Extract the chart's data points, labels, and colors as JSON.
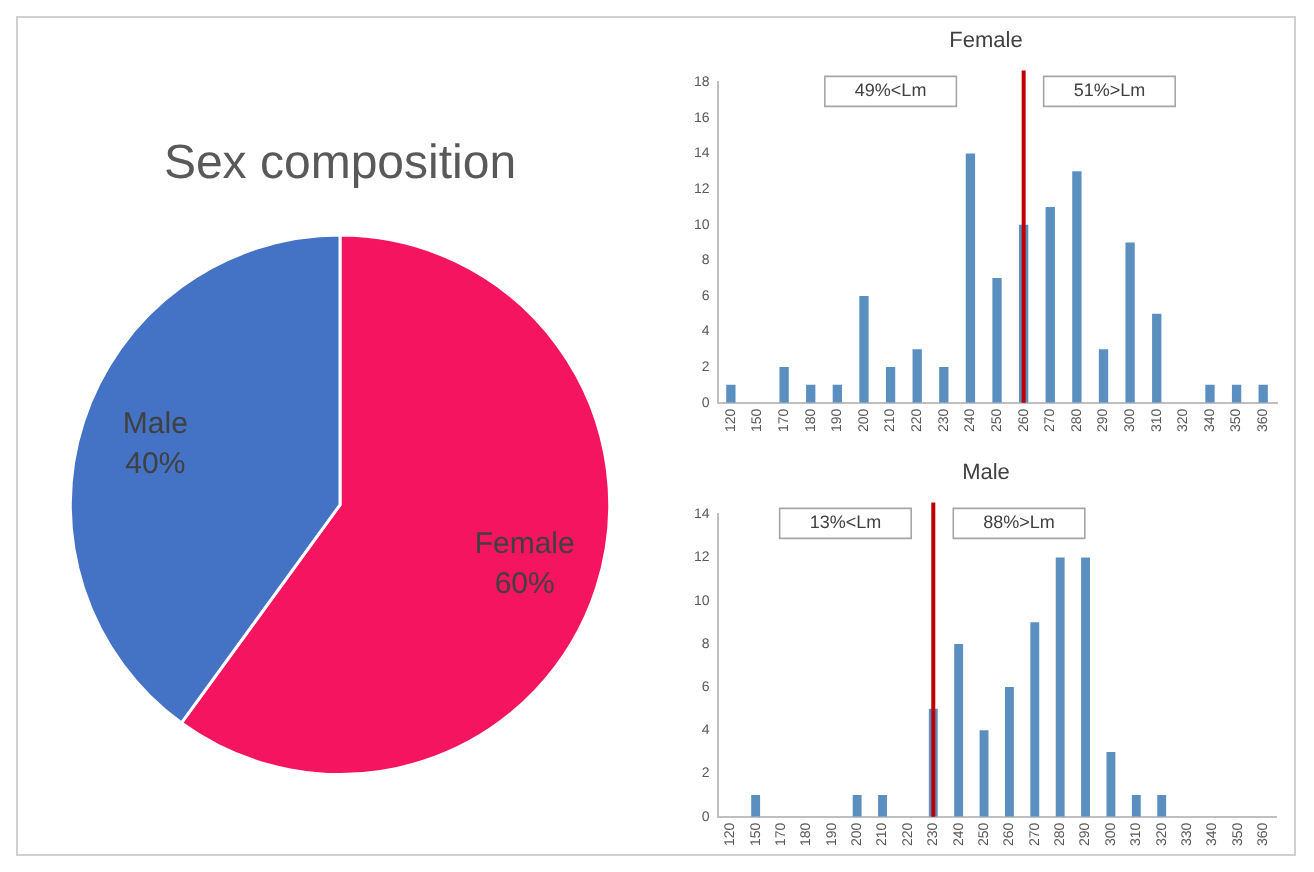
{
  "chart_data": [
    {
      "type": "pie",
      "title": "Sex composition",
      "categories": [
        "Female",
        "Male"
      ],
      "values": [
        60,
        40
      ],
      "colors": [
        "#f5145f",
        "#4472c4"
      ],
      "value_labels": [
        "60%",
        "40%"
      ],
      "legend": false
    },
    {
      "type": "bar",
      "title": "Female",
      "categories": [
        "120",
        "150",
        "170",
        "180",
        "190",
        "200",
        "210",
        "220",
        "230",
        "240",
        "250",
        "260",
        "270",
        "280",
        "290",
        "300",
        "310",
        "320",
        "340",
        "350",
        "360"
      ],
      "values": [
        1,
        0,
        2,
        1,
        1,
        6,
        2,
        3,
        2,
        14,
        7,
        10,
        11,
        13,
        3,
        9,
        5,
        0,
        1,
        1,
        1
      ],
      "color": "#5b8fc0",
      "ylim": [
        0,
        18
      ],
      "yticks": [
        0,
        2,
        4,
        6,
        8,
        10,
        12,
        14,
        16,
        18
      ],
      "grid": false,
      "legend": false,
      "ref_lines": [
        {
          "axis": "x",
          "value": "260",
          "color": "#c00000"
        }
      ],
      "annotations": [
        "49%<Lm",
        "51%>Lm"
      ]
    },
    {
      "type": "bar",
      "title": "Male",
      "categories": [
        "120",
        "150",
        "170",
        "180",
        "190",
        "200",
        "210",
        "220",
        "230",
        "240",
        "250",
        "260",
        "270",
        "280",
        "290",
        "300",
        "310",
        "320",
        "330",
        "340",
        "350",
        "360"
      ],
      "values": [
        0,
        1,
        0,
        0,
        0,
        1,
        1,
        0,
        5,
        8,
        4,
        6,
        9,
        12,
        12,
        3,
        1,
        1,
        0,
        0,
        0,
        0
      ],
      "color": "#5b8fc0",
      "ylim": [
        0,
        14
      ],
      "yticks": [
        0,
        2,
        4,
        6,
        8,
        10,
        12,
        14
      ],
      "grid": false,
      "legend": false,
      "ref_lines": [
        {
          "axis": "x",
          "value": "230",
          "color": "#c00000"
        }
      ],
      "annotations": [
        "13%<Lm",
        "88%>Lm"
      ]
    }
  ]
}
